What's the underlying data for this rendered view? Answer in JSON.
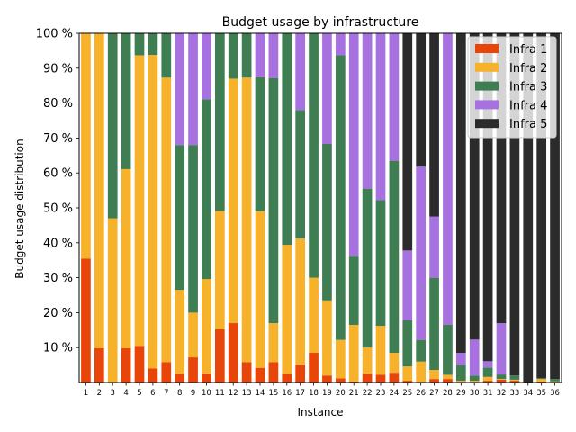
{
  "chart_data": {
    "type": "bar",
    "stacked": true,
    "title": "Budget usage by infrastructure",
    "xlabel": "Instance",
    "ylabel": "Budget usage distribution",
    "ylim": [
      0,
      100
    ],
    "yticks": [
      10,
      20,
      30,
      40,
      50,
      60,
      70,
      80,
      90,
      100
    ],
    "ytick_suffix": " %",
    "grid": false,
    "legend_position": "top-right",
    "categories": [
      "1",
      "2",
      "3",
      "4",
      "5",
      "6",
      "7",
      "8",
      "9",
      "10",
      "11",
      "12",
      "13",
      "14",
      "15",
      "16",
      "17",
      "18",
      "19",
      "20",
      "21",
      "22",
      "23",
      "24",
      "25",
      "26",
      "27",
      "28",
      "29",
      "30",
      "31",
      "32",
      "33",
      "34",
      "35",
      "36"
    ],
    "series": [
      {
        "name": "Infra 1",
        "color": "#e8450a",
        "values": [
          35.5,
          9.8,
          0,
          9.8,
          10.5,
          4.0,
          5.8,
          2.5,
          7.2,
          2.6,
          15.3,
          17.0,
          5.8,
          4.2,
          5.8,
          2.4,
          5.2,
          8.5,
          2.0,
          1.2,
          0.3,
          2.5,
          2.2,
          2.8,
          0.5,
          0.2,
          1.0,
          1.0,
          0.2,
          0.2,
          0.5,
          0.8,
          0.5,
          0,
          0.3,
          0
        ]
      },
      {
        "name": "Infra 2",
        "color": "#f7b22c",
        "values": [
          64.5,
          90.2,
          47.0,
          51.3,
          83.2,
          89.8,
          81.5,
          24.0,
          12.8,
          27.0,
          33.8,
          70.0,
          81.5,
          44.8,
          11.2,
          37.0,
          36.0,
          21.5,
          21.5,
          11.0,
          16.2,
          7.5,
          14.0,
          5.7,
          4.1,
          5.8,
          2.6,
          1.2,
          0.3,
          0.3,
          1.1,
          0.2,
          0.3,
          0,
          0.7,
          0.3
        ]
      },
      {
        "name": "Infra 3",
        "color": "#3f7d53",
        "values": [
          0,
          0,
          53.0,
          38.9,
          6.3,
          6.2,
          12.7,
          41.5,
          48.0,
          51.5,
          50.9,
          13.0,
          12.7,
          38.4,
          70.2,
          60.6,
          36.8,
          70.0,
          44.8,
          81.5,
          19.8,
          45.5,
          36.0,
          55.0,
          13.2,
          6.2,
          26.4,
          14.3,
          4.5,
          1.5,
          2.7,
          1.3,
          1.2,
          0,
          0.3,
          0.7
        ]
      },
      {
        "name": "Infra 4",
        "color": "#a772e0",
        "values": [
          0,
          0,
          0,
          0,
          0,
          0,
          0,
          32.0,
          32.0,
          19.0,
          0,
          0,
          0,
          12.6,
          12.8,
          0,
          22.0,
          0,
          31.7,
          6.3,
          63.7,
          44.5,
          47.8,
          36.5,
          20.0,
          49.6,
          17.5,
          83.5,
          3.5,
          10.3,
          1.8,
          14.7,
          0,
          0,
          0,
          0
        ]
      },
      {
        "name": "Infra 5",
        "color": "#2b2b2b",
        "values": [
          0,
          0,
          0,
          0,
          0,
          0,
          0,
          0,
          0,
          0,
          0,
          0,
          0,
          0,
          0,
          0,
          0,
          0,
          0,
          0,
          0,
          0,
          0,
          0,
          62.2,
          38.2,
          52.5,
          0,
          91.5,
          87.7,
          93.9,
          83.0,
          98.0,
          100,
          98.7,
          99.0
        ]
      }
    ]
  }
}
